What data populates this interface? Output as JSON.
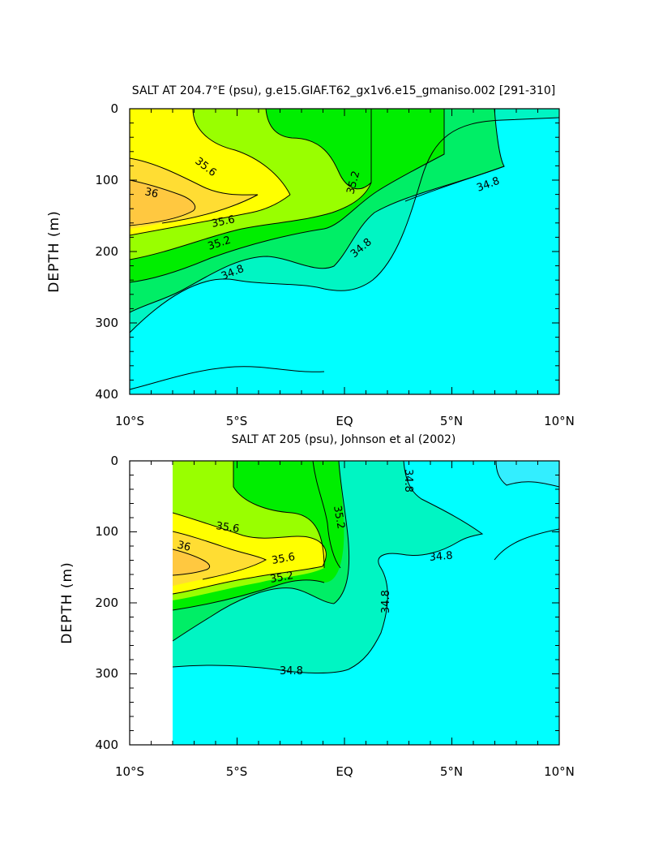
{
  "colors": {
    "s_lt_34_8": "#00ffff",
    "s_34_8_35_0": "#00f5c3",
    "s_35_0_35_2": "#00ee66",
    "s_35_2_35_4": "#00ee00",
    "s_35_4_35_6": "#99ff00",
    "s_35_6_35_8": "#ffff00",
    "s_35_8_36_0": "#ffdd33",
    "s_gt_36_0": "#ffc840",
    "patch_light_cyan": "#33eeff"
  },
  "chart_data": [
    {
      "type": "contour",
      "title": "SALT AT 204.7°E (psu), g.e15.GIAF.T62_gx1v6.e15_gmaniso.002 [291-310]",
      "xlabel": "",
      "ylabel": "DEPTH (m)",
      "x_ticks": [
        "10°S",
        "5°S",
        "EQ",
        "5°N",
        "10°N"
      ],
      "x_range": [
        -10,
        10
      ],
      "y_ticks": [
        "0",
        "100",
        "200",
        "300",
        "400"
      ],
      "y_range": [
        0,
        400
      ],
      "y_inverted": true,
      "contour_labels": [
        "35.6",
        "36",
        "35.6",
        "35.2",
        "34.8",
        "35.2",
        "34.8",
        "34.8"
      ],
      "max_salinity_region": {
        "lat": -9,
        "depth_m": 140,
        "salinity_psu": 36.1
      }
    },
    {
      "type": "contour",
      "title": "SALT AT 205 (psu), Johnson et al (2002)",
      "xlabel": "",
      "ylabel": "DEPTH (m)",
      "x_ticks": [
        "10°S",
        "5°S",
        "EQ",
        "5°N",
        "10°N"
      ],
      "x_range": [
        -10,
        10
      ],
      "y_ticks": [
        "0",
        "100",
        "200",
        "300",
        "400"
      ],
      "y_range": [
        0,
        400
      ],
      "y_inverted": true,
      "data_lat_range": [
        -8,
        10
      ],
      "contour_labels": [
        "35.6",
        "36",
        "35.6",
        "35.2",
        "35.2",
        "34.8",
        "34.8",
        "34.8",
        "34.8"
      ],
      "max_salinity_region": {
        "lat": -7.5,
        "depth_m": 145,
        "salinity_psu": 36.1
      }
    }
  ]
}
